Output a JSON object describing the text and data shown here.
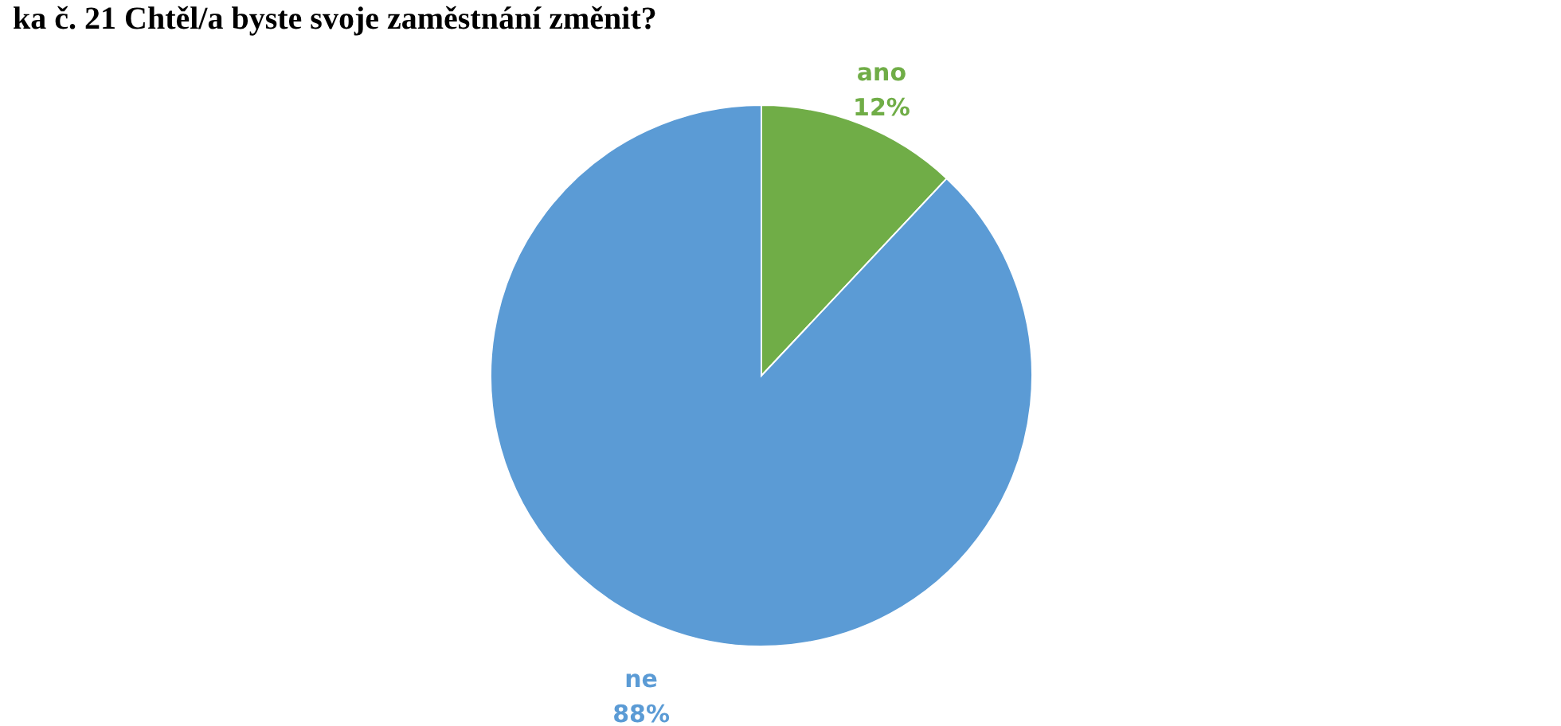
{
  "chart_data": {
    "type": "pie",
    "title": "ka č. 21      Chtěl/a byste svoje zaměstnání změnit?",
    "categories": [
      "ano",
      "ne"
    ],
    "values": [
      12,
      88
    ],
    "colors": [
      "#70ad47",
      "#5b9bd5"
    ],
    "value_labels": [
      "12%",
      "88%"
    ]
  }
}
